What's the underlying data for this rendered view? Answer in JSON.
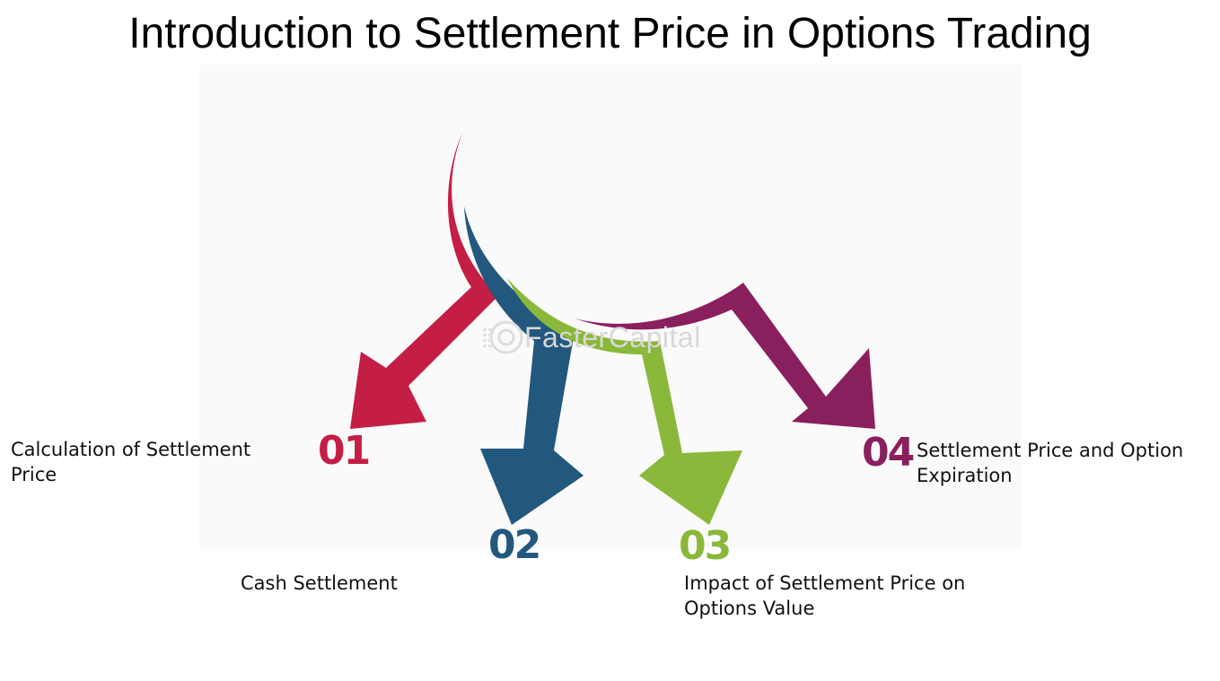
{
  "title": "Introduction to Settlement Price in Options Trading",
  "watermark": "FasterCapital",
  "colors": {
    "step1": "#c41e45",
    "step2": "#23587e",
    "step3": "#8ab83a",
    "step4": "#8a1f5e"
  },
  "steps": [
    {
      "number": "01",
      "label": "Calculation of Settlement Price"
    },
    {
      "number": "02",
      "label": "Cash Settlement"
    },
    {
      "number": "03",
      "label": "Impact of Settlement Price on Options Value"
    },
    {
      "number": "04",
      "label": "Settlement Price and Option Expiration"
    }
  ]
}
